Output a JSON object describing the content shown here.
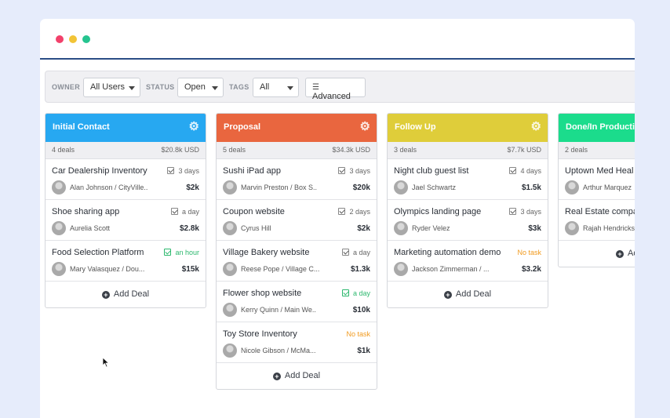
{
  "filters": {
    "owner_label": "OWNER",
    "owner_value": "All Users",
    "status_label": "STATUS",
    "status_value": "Open",
    "tags_label": "TAGS",
    "tags_value": "All",
    "advanced_label": "Advanced"
  },
  "add_deal_label": "Add Deal",
  "columns": [
    {
      "title": "Initial Contact",
      "color": "#27a8f1",
      "count": "4 deals",
      "amount": "$20.8k USD",
      "cards": [
        {
          "title": "Car Dealership Inventory",
          "due": "3 days",
          "person": "Alan Johnson / CityVille..",
          "value": "$2k"
        },
        {
          "title": "Shoe sharing app",
          "due": "a day",
          "person": "Aurelia Scott",
          "value": "$2.8k"
        },
        {
          "title": "Food Selection Platform",
          "due": "an hour",
          "person": "Mary Valasquez / Dou...",
          "value": "$15k"
        }
      ]
    },
    {
      "title": "Proposal",
      "color": "#e9663f",
      "count": "5 deals",
      "amount": "$34.3k USD",
      "cards": [
        {
          "title": "Sushi iPad app",
          "due": "3 days",
          "person": "Marvin Preston / Box S..",
          "value": "$20k"
        },
        {
          "title": "Coupon website",
          "due": "2 days",
          "person": "Cyrus Hill",
          "value": "$2k"
        },
        {
          "title": "Village Bakery website",
          "due": "a day",
          "person": "Reese Pope / Village C...",
          "value": "$1.3k"
        },
        {
          "title": "Flower shop website",
          "due": "a day",
          "person": "Kerry Quinn / Main We..",
          "value": "$10k"
        },
        {
          "title": "Toy Store Inventory",
          "due": "No task",
          "person": "Nicole Gibson / McMa...",
          "value": "$1k"
        }
      ]
    },
    {
      "title": "Follow Up",
      "color": "#dfcd3a",
      "count": "3 deals",
      "amount": "$7.7k USD",
      "cards": [
        {
          "title": "Night club guest list",
          "due": "4 days",
          "person": "Jael Schwartz",
          "value": "$1.5k"
        },
        {
          "title": "Olympics landing page",
          "due": "3 days",
          "person": "Ryder Velez",
          "value": "$3k"
        },
        {
          "title": "Marketing automation demo",
          "due": "No task",
          "person": "Jackson Zimmerman / ...",
          "value": "$3.2k"
        }
      ]
    },
    {
      "title": "Done/In Production",
      "color": "#1bdc8c",
      "count": "2 deals",
      "amount": "",
      "cards": [
        {
          "title": "Uptown Med Heal",
          "due": "",
          "person": "Arthur Marquez",
          "value": ""
        },
        {
          "title": "Real Estate compa",
          "due": "",
          "person": "Rajah Hendricks",
          "value": ""
        }
      ],
      "add_label": "Ad"
    }
  ]
}
